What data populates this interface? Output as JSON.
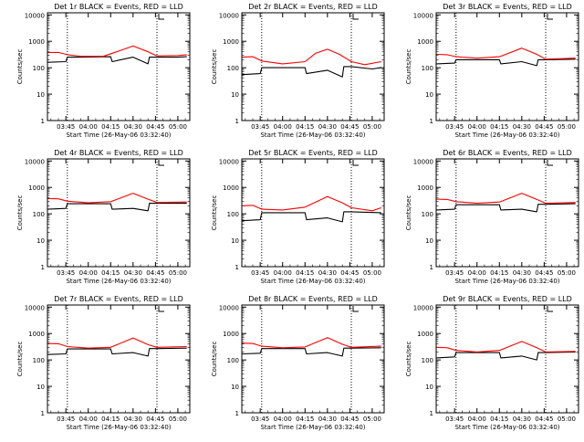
{
  "colors": {
    "events": "#000000",
    "lld": "#ff0000",
    "axes": "#000000",
    "background": "#ffffff"
  },
  "shared": {
    "xlabel": "Start Time (26-May-06 03:32:40)",
    "ylabel": "Counts/sec",
    "x_ticks": [
      "03:45",
      "04:00",
      "04:15",
      "04:30",
      "04:45",
      "05:00"
    ],
    "y_ticks": [
      "1",
      "10",
      "100",
      "1000",
      "10000"
    ],
    "xlim": [
      "03:32:40",
      "05:08:00"
    ],
    "ylim": [
      1,
      12000
    ],
    "yscale": "log",
    "dotted_lines_at": [
      "03:46",
      "04:46"
    ]
  },
  "chart_data": [
    {
      "type": "line",
      "title": "Det 1r BLACK = Events, RED = LLD",
      "series": [
        {
          "name": "Events",
          "color": "black",
          "x": [
            "03:33",
            "03:45",
            "03:46",
            "03:55",
            "04:15",
            "04:16",
            "04:30",
            "04:40",
            "04:41",
            "04:46",
            "05:00",
            "05:06"
          ],
          "y": [
            160,
            170,
            250,
            250,
            260,
            170,
            250,
            140,
            250,
            250,
            250,
            260
          ]
        },
        {
          "name": "LLD",
          "color": "red",
          "x": [
            "03:33",
            "03:40",
            "03:46",
            "03:55",
            "04:10",
            "04:20",
            "04:30",
            "04:40",
            "04:46",
            "05:00",
            "05:06"
          ],
          "y": [
            380,
            380,
            310,
            270,
            270,
            420,
            660,
            400,
            280,
            290,
            310
          ]
        }
      ]
    },
    {
      "type": "line",
      "title": "Det 2r BLACK = Events, RED = LLD",
      "series": [
        {
          "name": "Events",
          "color": "black",
          "x": [
            "03:33",
            "03:45",
            "03:46",
            "04:15",
            "04:16",
            "04:30",
            "04:40",
            "04:41",
            "04:46",
            "05:00",
            "05:06"
          ],
          "y": [
            55,
            60,
            100,
            100,
            60,
            80,
            45,
            110,
            110,
            90,
            100
          ]
        },
        {
          "name": "LLD",
          "color": "red",
          "x": [
            "03:33",
            "03:40",
            "03:46",
            "04:00",
            "04:15",
            "04:22",
            "04:30",
            "04:38",
            "04:46",
            "04:55",
            "05:06"
          ],
          "y": [
            250,
            260,
            180,
            140,
            170,
            350,
            500,
            320,
            170,
            130,
            170
          ]
        }
      ]
    },
    {
      "type": "line",
      "title": "Det 3r BLACK = Events, RED = LLD",
      "series": [
        {
          "name": "Events",
          "color": "black",
          "x": [
            "03:33",
            "03:45",
            "03:46",
            "04:15",
            "04:16",
            "04:30",
            "04:40",
            "04:41",
            "04:46",
            "05:06"
          ],
          "y": [
            140,
            150,
            200,
            200,
            140,
            170,
            120,
            200,
            200,
            210
          ]
        },
        {
          "name": "LLD",
          "color": "red",
          "x": [
            "03:33",
            "03:40",
            "03:46",
            "04:00",
            "04:15",
            "04:30",
            "04:40",
            "04:46",
            "05:06"
          ],
          "y": [
            320,
            310,
            260,
            230,
            260,
            550,
            320,
            210,
            230
          ]
        }
      ]
    },
    {
      "type": "line",
      "title": "Det 4r BLACK = Events, RED = LLD",
      "series": [
        {
          "name": "Events",
          "color": "black",
          "x": [
            "03:33",
            "03:45",
            "03:46",
            "04:15",
            "04:16",
            "04:30",
            "04:40",
            "04:41",
            "04:46",
            "05:06"
          ],
          "y": [
            150,
            160,
            240,
            240,
            150,
            160,
            130,
            250,
            250,
            250
          ]
        },
        {
          "name": "LLD",
          "color": "red",
          "x": [
            "03:33",
            "03:40",
            "03:46",
            "04:00",
            "04:15",
            "04:30",
            "04:40",
            "04:46",
            "05:06"
          ],
          "y": [
            380,
            370,
            300,
            260,
            290,
            600,
            360,
            270,
            280
          ]
        }
      ]
    },
    {
      "type": "line",
      "title": "Det 5r BLACK = Events, RED = LLD",
      "series": [
        {
          "name": "Events",
          "color": "black",
          "x": [
            "03:33",
            "03:45",
            "03:46",
            "04:15",
            "04:16",
            "04:30",
            "04:40",
            "04:41",
            "04:46",
            "05:06"
          ],
          "y": [
            55,
            60,
            110,
            110,
            60,
            70,
            50,
            120,
            120,
            110
          ]
        },
        {
          "name": "LLD",
          "color": "red",
          "x": [
            "03:33",
            "03:40",
            "03:46",
            "04:00",
            "04:15",
            "04:30",
            "04:40",
            "04:46",
            "05:00",
            "05:06"
          ],
          "y": [
            200,
            210,
            150,
            140,
            180,
            450,
            260,
            170,
            130,
            170
          ]
        }
      ]
    },
    {
      "type": "line",
      "title": "Det 6r BLACK = Events, RED = LLD",
      "series": [
        {
          "name": "Events",
          "color": "black",
          "x": [
            "03:33",
            "03:45",
            "03:46",
            "04:15",
            "04:16",
            "04:30",
            "04:40",
            "04:41",
            "04:46",
            "05:06"
          ],
          "y": [
            140,
            150,
            220,
            220,
            140,
            150,
            120,
            230,
            230,
            240
          ]
        },
        {
          "name": "LLD",
          "color": "red",
          "x": [
            "03:33",
            "03:40",
            "03:46",
            "04:00",
            "04:15",
            "04:30",
            "04:40",
            "04:46",
            "05:06"
          ],
          "y": [
            360,
            350,
            290,
            250,
            280,
            600,
            350,
            250,
            270
          ]
        }
      ]
    },
    {
      "type": "line",
      "title": "Det 7r BLACK = Events, RED = LLD",
      "series": [
        {
          "name": "Events",
          "color": "black",
          "x": [
            "03:33",
            "03:45",
            "03:46",
            "04:15",
            "04:16",
            "04:30",
            "04:40",
            "04:41",
            "04:46",
            "05:06"
          ],
          "y": [
            160,
            170,
            260,
            260,
            170,
            190,
            140,
            270,
            270,
            280
          ]
        },
        {
          "name": "LLD",
          "color": "red",
          "x": [
            "03:33",
            "03:40",
            "03:46",
            "04:00",
            "04:15",
            "04:30",
            "04:40",
            "04:46",
            "05:06"
          ],
          "y": [
            420,
            410,
            320,
            280,
            300,
            680,
            380,
            300,
            320
          ]
        }
      ]
    },
    {
      "type": "line",
      "title": "Det 8r BLACK = Events, RED = LLD",
      "series": [
        {
          "name": "Events",
          "color": "black",
          "x": [
            "03:33",
            "03:45",
            "03:46",
            "04:15",
            "04:16",
            "04:30",
            "04:40",
            "04:41",
            "04:46",
            "05:06"
          ],
          "y": [
            170,
            180,
            270,
            270,
            170,
            190,
            140,
            280,
            280,
            290
          ]
        },
        {
          "name": "LLD",
          "color": "red",
          "x": [
            "03:33",
            "03:40",
            "03:46",
            "04:00",
            "04:15",
            "04:30",
            "04:40",
            "04:46",
            "05:06"
          ],
          "y": [
            430,
            420,
            330,
            290,
            310,
            700,
            390,
            300,
            330
          ]
        }
      ]
    },
    {
      "type": "line",
      "title": "Det 9r BLACK = Events, RED = LLD",
      "series": [
        {
          "name": "Events",
          "color": "black",
          "x": [
            "03:33",
            "03:45",
            "03:46",
            "04:15",
            "04:16",
            "04:30",
            "04:40",
            "04:41",
            "04:46",
            "05:06"
          ],
          "y": [
            120,
            130,
            190,
            190,
            120,
            140,
            100,
            190,
            190,
            200
          ]
        },
        {
          "name": "LLD",
          "color": "red",
          "x": [
            "03:33",
            "03:40",
            "03:46",
            "04:00",
            "04:15",
            "04:30",
            "04:40",
            "04:46",
            "05:06"
          ],
          "y": [
            300,
            290,
            230,
            200,
            230,
            500,
            290,
            200,
            210
          ]
        }
      ]
    }
  ]
}
